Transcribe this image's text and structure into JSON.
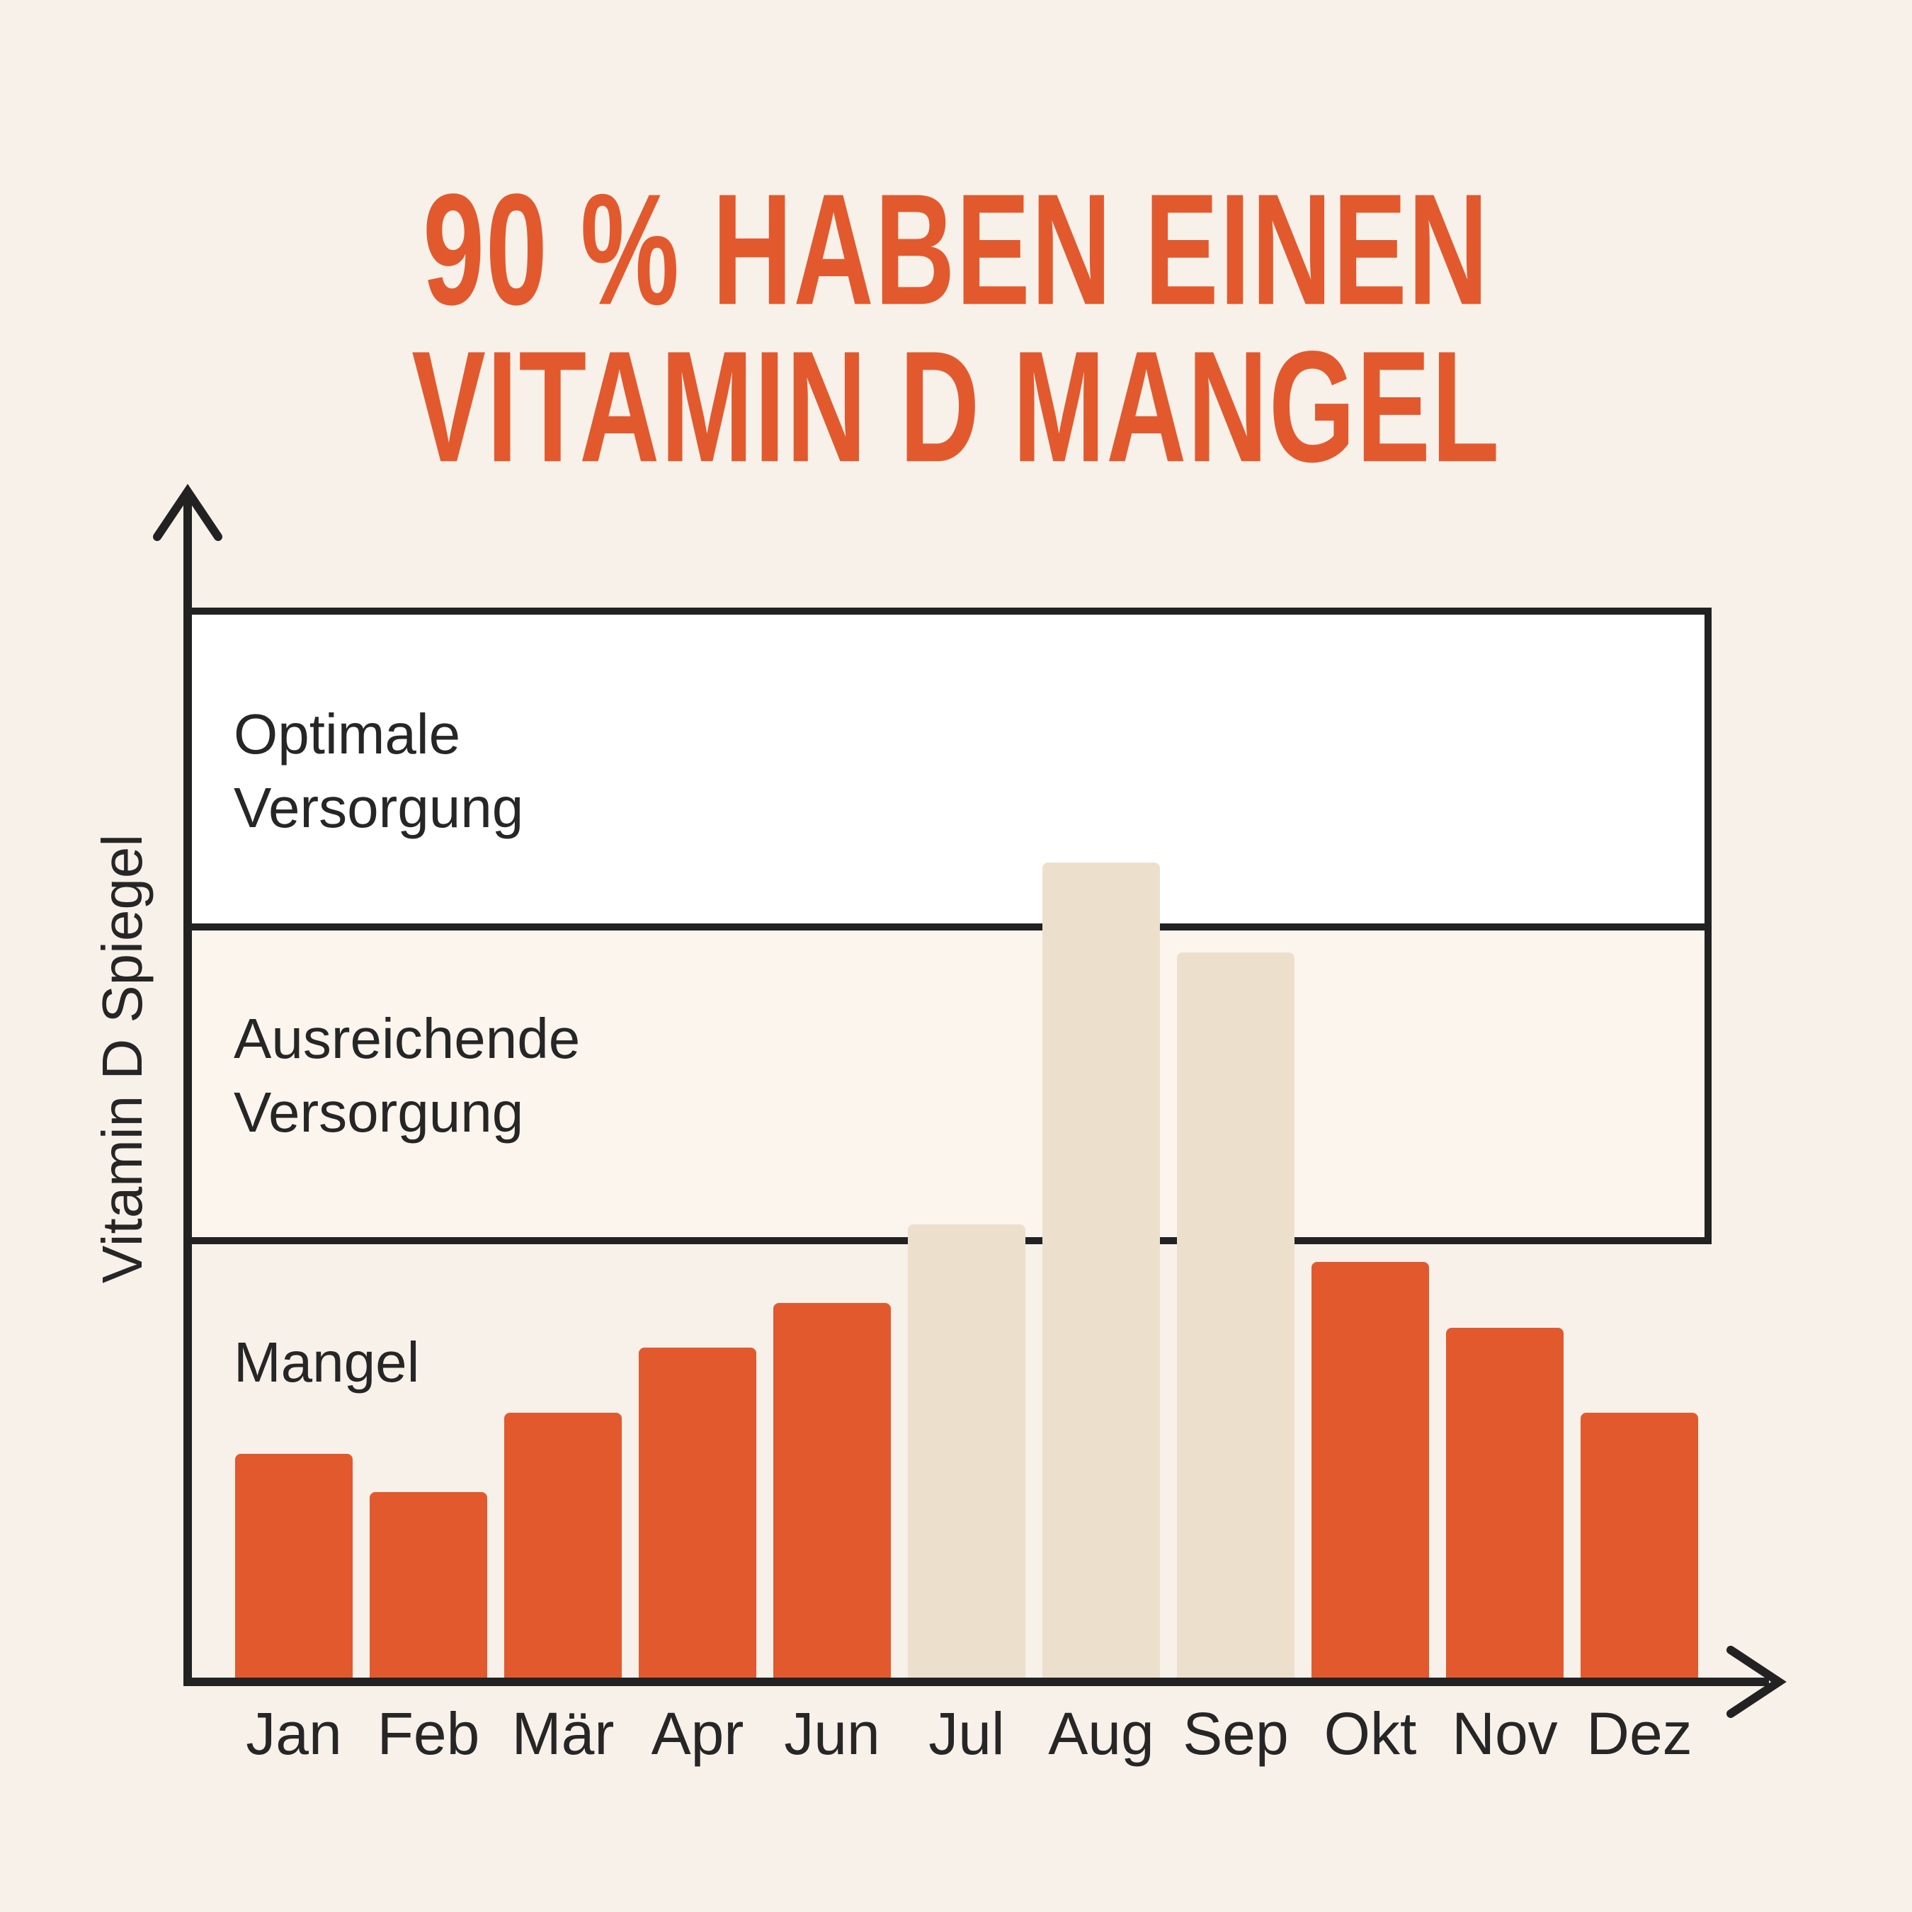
{
  "title": {
    "line1": "90 % HABEN EINEN",
    "line2": "VITAMIN D MANGEL"
  },
  "colors": {
    "background": "#F8F1EA",
    "accent_orange": "#E2592E",
    "bar_beige": "#ECE0CD",
    "line_dark": "#222222",
    "text_dark": "#262626",
    "zone_optimal_fill": "#FFFFFF",
    "zone_sufficient_fill": "#FBF5EE"
  },
  "chart_data": {
    "type": "bar",
    "title": "90 % HABEN EINEN VITAMIN D MANGEL",
    "ylabel": "Vitamin D Spiegel",
    "xlabel": "",
    "grid": false,
    "legend": false,
    "axis_style": "arrow-tipped axes, no numeric ticks",
    "ylim_note": "values are percent of plot height (0 = x-axis, 100 = top of zone box)",
    "categories": [
      "Jan",
      "Feb",
      "Mär",
      "Apr",
      "Jun",
      "Jul",
      "Aug",
      "Sep",
      "Okt",
      "Nov",
      "Dez"
    ],
    "values": [
      21.3,
      17.7,
      25.1,
      31.2,
      35.4,
      42.7,
      76.5,
      68.1,
      39.2,
      33.1,
      25.1
    ],
    "bar_color_keys": [
      "orange",
      "orange",
      "orange",
      "orange",
      "orange",
      "beige",
      "beige",
      "beige",
      "orange",
      "orange",
      "orange"
    ],
    "zones": [
      {
        "label": "Optimale\nVersorgung",
        "from_pct": 70.7,
        "to_pct": 100,
        "fill_key": "optimal"
      },
      {
        "label": "Ausreichende\nVersorgung",
        "from_pct": 41.2,
        "to_pct": 70.7,
        "fill_key": "sufficient"
      },
      {
        "label": "Mangel",
        "from_pct": 0,
        "to_pct": 41.2,
        "fill_key": "none"
      }
    ]
  }
}
